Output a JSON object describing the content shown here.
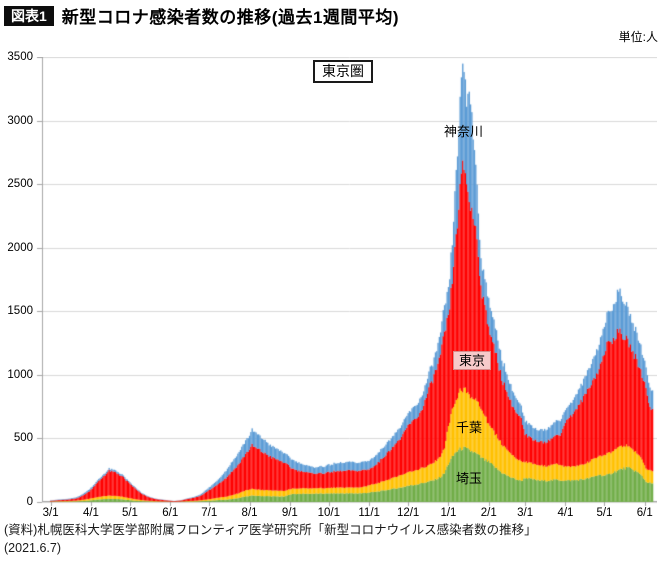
{
  "header": {
    "badge": "図表1",
    "title": "新型コロナ感染者数の推移(過去1週間平均)",
    "unit": "単位:人"
  },
  "footer": {
    "line1": "(資料)札幌医科大学医学部附属フロンティア医学研究所「新型コロナウイルス感染者数の推移」",
    "line2": "(2021.6.7)"
  },
  "chart_data": {
    "type": "area",
    "stacked": true,
    "title": "新型コロナ感染者数の推移(過去1週間平均)",
    "unit": "人",
    "region_label": "東京圏",
    "xlabel": "",
    "ylabel": "",
    "ylim": [
      0,
      3500
    ],
    "grid": true,
    "grid_color": "#d9d9d9",
    "axis_color": "#a6a6a6",
    "y_ticks": [
      0,
      500,
      1000,
      1500,
      2000,
      2500,
      3000,
      3500
    ],
    "x_ticks": [
      {
        "label": "3/1",
        "day": 0
      },
      {
        "label": "4/1",
        "day": 31
      },
      {
        "label": "5/1",
        "day": 61
      },
      {
        "label": "6/1",
        "day": 92
      },
      {
        "label": "7/1",
        "day": 122
      },
      {
        "label": "8/1",
        "day": 153
      },
      {
        "label": "9/1",
        "day": 184
      },
      {
        "label": "10/1",
        "day": 214
      },
      {
        "label": "11/1",
        "day": 245
      },
      {
        "label": "12/1",
        "day": 275
      },
      {
        "label": "1/1",
        "day": 306
      },
      {
        "label": "2/1",
        "day": 337
      },
      {
        "label": "3/1",
        "day": 365
      },
      {
        "label": "4/1",
        "day": 396
      },
      {
        "label": "5/1",
        "day": 426
      },
      {
        "label": "6/1",
        "day": 457
      }
    ],
    "start_date": "2020-03-01",
    "end_date": "2021-06-07",
    "series": [
      {
        "name": "埼玉",
        "color": "#70AD47"
      },
      {
        "name": "千葉",
        "color": "#FFC000"
      },
      {
        "name": "東京",
        "color": "#FF0000"
      },
      {
        "name": "神奈川",
        "color": "#5B9BD5"
      }
    ],
    "annotations": {
      "group_box": "東京圏",
      "kanagawa": "神奈川",
      "tokyo": "東京",
      "chiba": "千葉",
      "saitama": "埼玉"
    },
    "points_format": "[day_offset_from_2020-03-01, 埼玉, 千葉, 東京, 神奈川] 7-day average persons, stacked",
    "points": [
      [
        0,
        2,
        2,
        6,
        3
      ],
      [
        5,
        3,
        3,
        8,
        4
      ],
      [
        10,
        3,
        4,
        10,
        5
      ],
      [
        15,
        4,
        4,
        13,
        6
      ],
      [
        20,
        5,
        6,
        18,
        8
      ],
      [
        25,
        8,
        9,
        35,
        12
      ],
      [
        30,
        12,
        14,
        60,
        15
      ],
      [
        35,
        18,
        18,
        105,
        15
      ],
      [
        40,
        22,
        22,
        150,
        16
      ],
      [
        45,
        25,
        25,
        195,
        15
      ],
      [
        50,
        24,
        24,
        185,
        14
      ],
      [
        55,
        21,
        21,
        160,
        13
      ],
      [
        60,
        16,
        16,
        120,
        10
      ],
      [
        65,
        10,
        12,
        85,
        8
      ],
      [
        70,
        7,
        8,
        50,
        6
      ],
      [
        75,
        5,
        5,
        30,
        4
      ],
      [
        80,
        3,
        4,
        18,
        3
      ],
      [
        85,
        2,
        3,
        12,
        3
      ],
      [
        90,
        2,
        2,
        8,
        2
      ],
      [
        95,
        1,
        1,
        5,
        1
      ],
      [
        100,
        2,
        2,
        8,
        2
      ],
      [
        105,
        3,
        4,
        16,
        4
      ],
      [
        110,
        4,
        5,
        24,
        6
      ],
      [
        115,
        6,
        7,
        35,
        10
      ],
      [
        120,
        9,
        10,
        60,
        18
      ],
      [
        125,
        12,
        15,
        85,
        27
      ],
      [
        130,
        16,
        20,
        115,
        38
      ],
      [
        135,
        18,
        24,
        148,
        58
      ],
      [
        140,
        24,
        31,
        190,
        75
      ],
      [
        145,
        31,
        39,
        230,
        92
      ],
      [
        150,
        44,
        48,
        286,
        102
      ],
      [
        155,
        50,
        52,
        340,
        120
      ],
      [
        160,
        48,
        50,
        316,
        112
      ],
      [
        165,
        46,
        47,
        287,
        100
      ],
      [
        170,
        45,
        46,
        260,
        88
      ],
      [
        175,
        44,
        45,
        240,
        82
      ],
      [
        180,
        43,
        44,
        222,
        76
      ],
      [
        185,
        62,
        42,
        164,
        70
      ],
      [
        190,
        64,
        42,
        142,
        64
      ],
      [
        195,
        65,
        42,
        130,
        56
      ],
      [
        200,
        65,
        42,
        121,
        50
      ],
      [
        205,
        66,
        42,
        115,
        49
      ],
      [
        210,
        66,
        43,
        119,
        54
      ],
      [
        215,
        67,
        44,
        124,
        59
      ],
      [
        220,
        68,
        45,
        128,
        62
      ],
      [
        225,
        68,
        45,
        131,
        64
      ],
      [
        230,
        68,
        46,
        134,
        66
      ],
      [
        235,
        68,
        46,
        131,
        64
      ],
      [
        240,
        69,
        47,
        133,
        65
      ],
      [
        245,
        74,
        58,
        125,
        70
      ],
      [
        250,
        80,
        64,
        146,
        75
      ],
      [
        255,
        88,
        72,
        180,
        80
      ],
      [
        260,
        97,
        80,
        220,
        85
      ],
      [
        265,
        106,
        90,
        258,
        88
      ],
      [
        270,
        115,
        100,
        295,
        93
      ],
      [
        275,
        128,
        108,
        365,
        94
      ],
      [
        280,
        135,
        112,
        400,
        105
      ],
      [
        285,
        146,
        118,
        444,
        110
      ],
      [
        290,
        158,
        124,
        572,
        118
      ],
      [
        295,
        172,
        140,
        678,
        132
      ],
      [
        300,
        195,
        165,
        788,
        177
      ],
      [
        303,
        225,
        195,
        900,
        210
      ],
      [
        306,
        300,
        300,
        850,
        210
      ],
      [
        309,
        350,
        360,
        1010,
        300
      ],
      [
        312,
        395,
        420,
        1290,
        495
      ],
      [
        315,
        415,
        448,
        1560,
        670
      ],
      [
        317,
        425,
        455,
        1765,
        785
      ],
      [
        319,
        420,
        450,
        1700,
        710
      ],
      [
        320,
        415,
        445,
        1640,
        600
      ],
      [
        322,
        405,
        435,
        1530,
        900
      ],
      [
        325,
        395,
        425,
        1430,
        650
      ],
      [
        328,
        375,
        405,
        1300,
        420
      ],
      [
        331,
        350,
        380,
        950,
        220
      ],
      [
        334,
        330,
        345,
        855,
        205
      ],
      [
        337,
        315,
        300,
        770,
        220
      ],
      [
        342,
        272,
        262,
        640,
        186
      ],
      [
        347,
        232,
        228,
        520,
        155
      ],
      [
        352,
        203,
        196,
        432,
        131
      ],
      [
        357,
        182,
        172,
        372,
        112
      ],
      [
        362,
        166,
        152,
        332,
        97
      ],
      [
        365,
        190,
        128,
        212,
        105
      ],
      [
        370,
        180,
        120,
        192,
        96
      ],
      [
        375,
        170,
        117,
        186,
        91
      ],
      [
        380,
        167,
        116,
        191,
        95
      ],
      [
        385,
        171,
        120,
        204,
        104
      ],
      [
        390,
        176,
        126,
        228,
        114
      ],
      [
        392,
        172,
        122,
        240,
        116
      ],
      [
        397,
        168,
        108,
        370,
        94
      ],
      [
        402,
        170,
        110,
        413,
        107
      ],
      [
        407,
        175,
        113,
        479,
        123
      ],
      [
        412,
        182,
        121,
        554,
        141
      ],
      [
        417,
        195,
        136,
        619,
        168
      ],
      [
        422,
        215,
        150,
        680,
        195
      ],
      [
        427,
        205,
        160,
        840,
        220
      ],
      [
        432,
        230,
        170,
        878,
        255
      ],
      [
        437,
        250,
        180,
        905,
        325
      ],
      [
        440,
        262,
        175,
        869,
        284
      ],
      [
        443,
        270,
        170,
        830,
        260
      ],
      [
        445,
        265,
        165,
        806,
        244
      ],
      [
        450,
        245,
        150,
        738,
        215
      ],
      [
        455,
        205,
        132,
        666,
        187
      ],
      [
        458,
        160,
        106,
        632,
        158
      ],
      [
        461,
        150,
        101,
        502,
        150
      ],
      [
        463,
        145,
        98,
        480,
        147
      ]
    ]
  }
}
